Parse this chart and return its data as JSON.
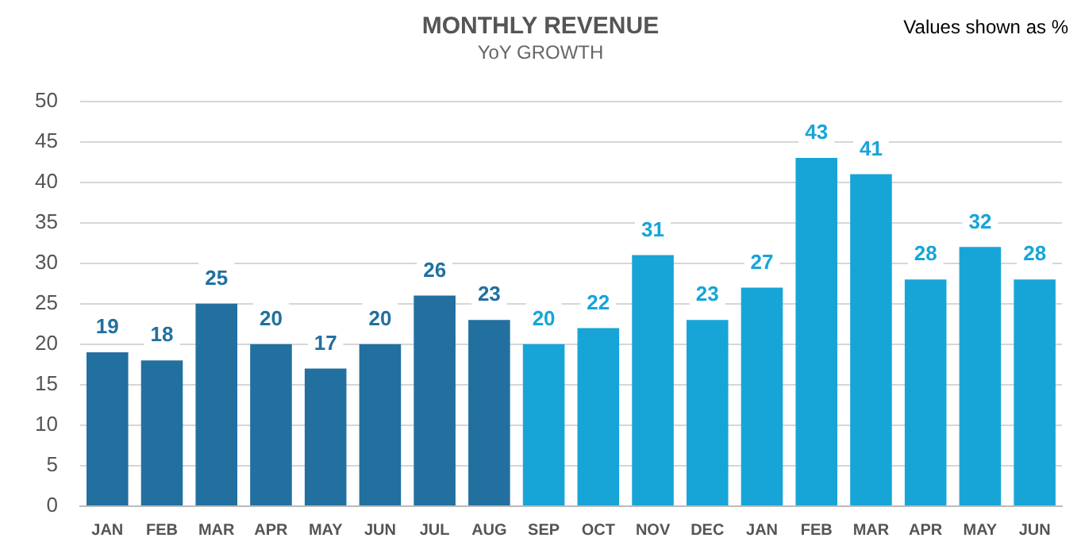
{
  "chart_data": {
    "type": "bar",
    "title": "MONTHLY REVENUE",
    "subtitle": "YoY GROWTH",
    "annotations": [
      "Values shown as %"
    ],
    "categories": [
      "JAN",
      "FEB",
      "MAR",
      "APR",
      "MAY",
      "JUN",
      "JUL",
      "AUG",
      "SEP",
      "OCT",
      "NOV",
      "DEC",
      "JAN",
      "FEB",
      "MAR",
      "APR",
      "MAY",
      "JUN"
    ],
    "values": [
      19,
      18,
      25,
      20,
      17,
      20,
      26,
      23,
      20,
      22,
      31,
      23,
      27,
      43,
      41,
      28,
      32,
      28
    ],
    "data_labels": true,
    "colors": [
      "#2270a0",
      "#2270a0",
      "#2270a0",
      "#2270a0",
      "#2270a0",
      "#2270a0",
      "#2270a0",
      "#2270a0",
      "#17a5d8",
      "#17a5d8",
      "#17a5d8",
      "#17a5d8",
      "#17a5d8",
      "#17a5d8",
      "#17a5d8",
      "#17a5d8",
      "#17a5d8",
      "#17a5d8"
    ],
    "ylim": [
      0,
      50
    ],
    "yticks": [
      0,
      5,
      10,
      15,
      20,
      25,
      30,
      35,
      40,
      45,
      50
    ],
    "grid": "y",
    "legend": false
  }
}
